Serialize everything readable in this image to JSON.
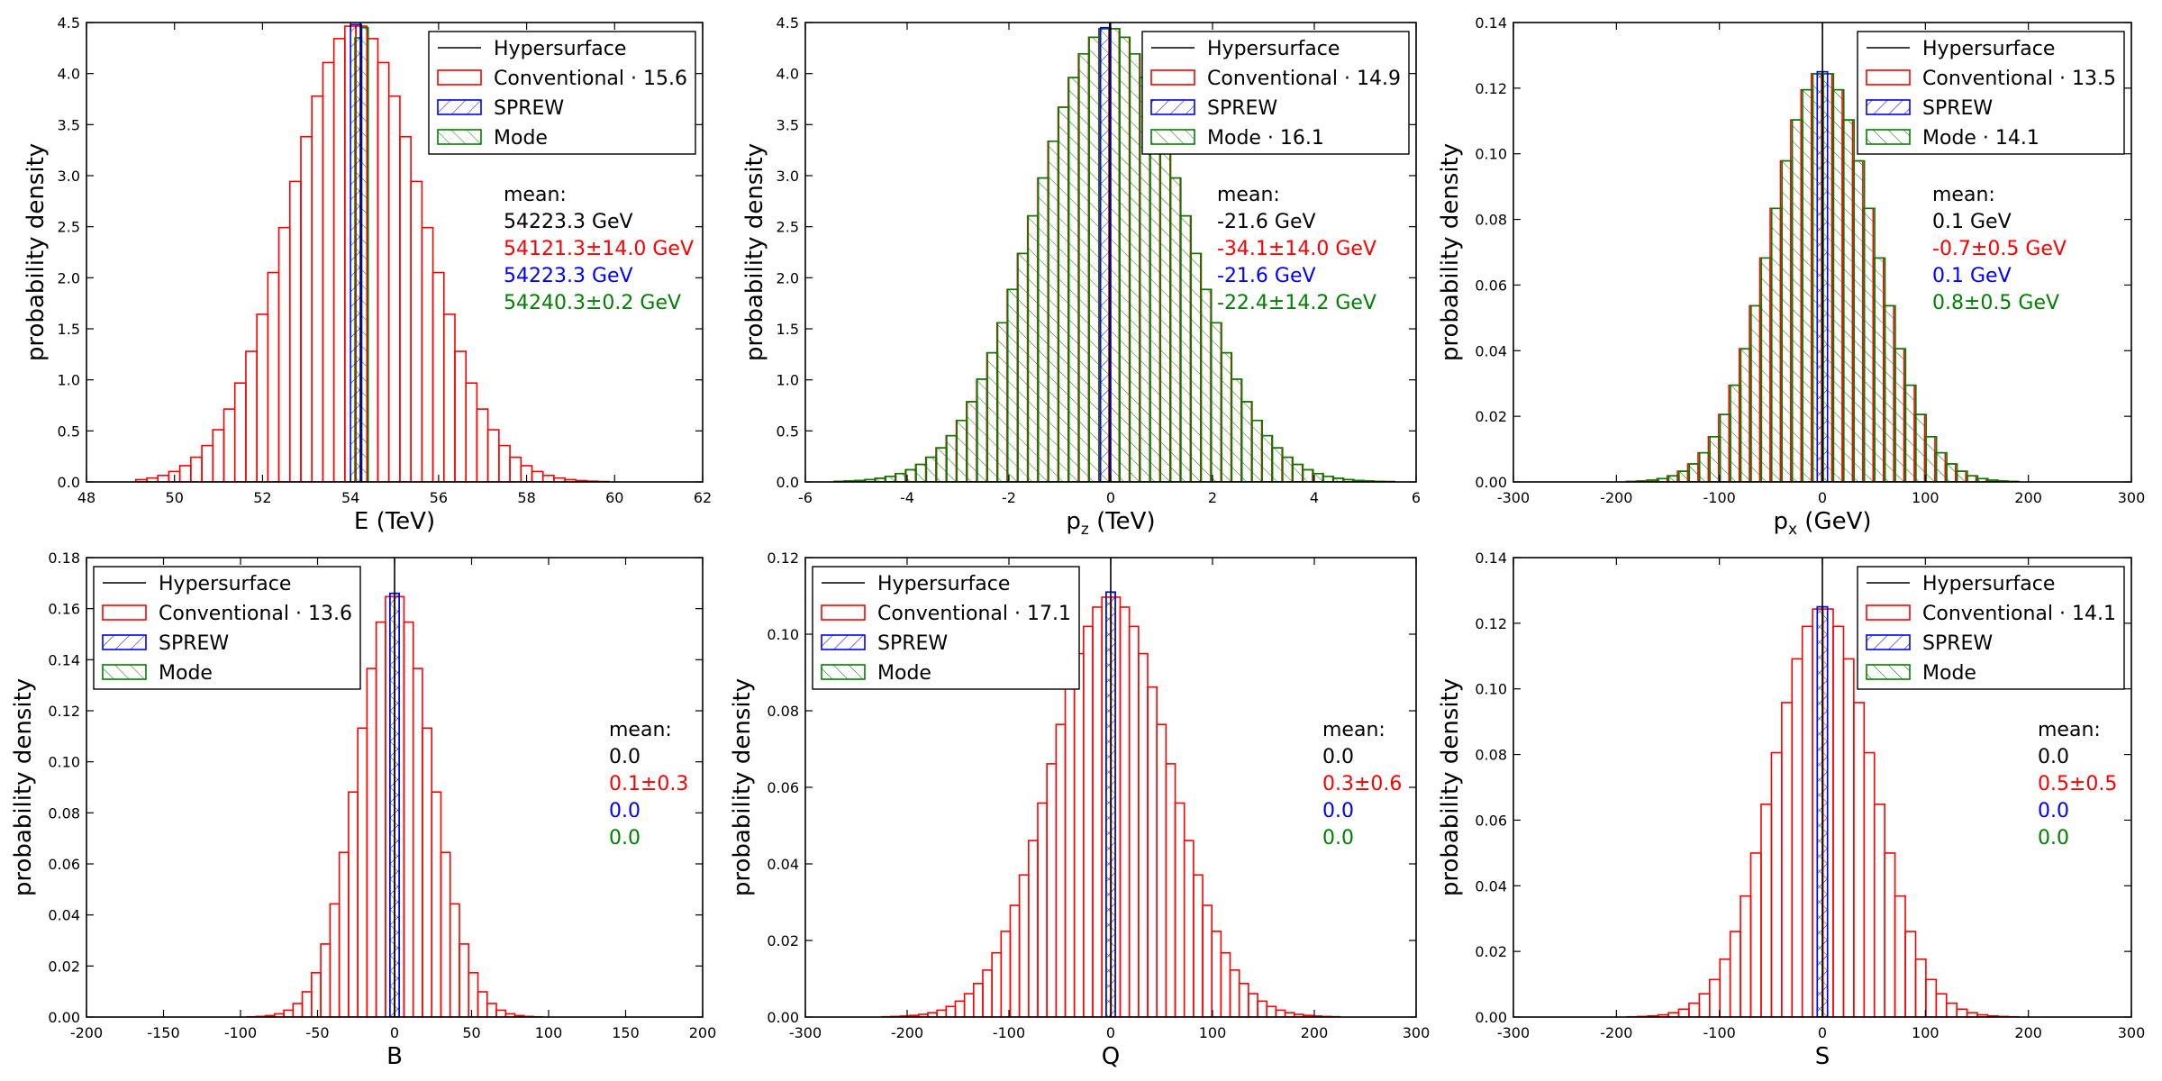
{
  "colors": {
    "hyper": "#000000",
    "conv": "#ff0000",
    "sprew": "#0000ff",
    "mode": "#008000"
  },
  "legend_labels": {
    "hyper": "Hypersurface",
    "conv": "Conventional",
    "sprew": "SPREW",
    "mode": "Mode",
    "sep": " · "
  },
  "ylabel": "probability density",
  "mean_label": "mean:",
  "chart_data": [
    {
      "type": "bar",
      "title": "",
      "xlabel": "E (TeV)",
      "ylabel": "probability density",
      "xlim": [
        48,
        62
      ],
      "ylim": [
        0,
        4.5
      ],
      "xticks": [
        48,
        50,
        52,
        54,
        56,
        58,
        60,
        62
      ],
      "yticks": [
        0.0,
        0.5,
        1.0,
        1.5,
        2.0,
        2.5,
        3.0,
        3.5,
        4.0,
        4.5
      ],
      "ytick_dec": 1,
      "hypersurface_x": 54.2233,
      "conventional": {
        "mean": 54.1213,
        "sigma": 1.5,
        "bin_width": 0.25,
        "peak": 4.48,
        "min": 49.2,
        "max": 60.5
      },
      "sprew": {
        "bin_edges": [
          54.0,
          54.25
        ],
        "value": 4.48
      },
      "mode": {
        "bin_edges": [
          54.1,
          54.25,
          54.4
        ],
        "values": [
          4.35,
          4.45
        ]
      },
      "legend": {
        "position": "upper-right",
        "conv_suffix": "15.6",
        "mode_suffix": ""
      },
      "mean_block": {
        "hyper": "54223.3 GeV",
        "conv": "54121.3±14.0 GeV",
        "sprew": "54223.3 GeV",
        "mode": "54240.3±0.2 GeV"
      }
    },
    {
      "type": "bar",
      "title": "",
      "xlabel": "p",
      "xlabel_sub": "z",
      "xlabel_unit": " (TeV)",
      "ylabel": "probability density",
      "xlim": [
        -6,
        6
      ],
      "ylim": [
        0,
        4.5
      ],
      "xticks": [
        -6,
        -4,
        -2,
        0,
        2,
        4,
        6
      ],
      "yticks": [
        0.0,
        0.5,
        1.0,
        1.5,
        2.0,
        2.5,
        3.0,
        3.5,
        4.0,
        4.5
      ],
      "ytick_dec": 1,
      "hypersurface_x": -0.0216,
      "conventional": {
        "mean": -0.0341,
        "sigma": 1.45,
        "bin_width": 0.2,
        "peak": 4.45,
        "min": -5.4,
        "max": 5.6
      },
      "sprew": {
        "bin_edges": [
          -0.2,
          0.0
        ],
        "value": 4.45
      },
      "mode": {
        "mean": -0.0224,
        "sigma": 1.45,
        "bin_width": 0.2,
        "peak": 4.45,
        "min": -5.4,
        "max": 5.6
      },
      "legend": {
        "position": "upper-right",
        "conv_suffix": "14.9",
        "mode_suffix": "16.1"
      },
      "mean_block": {
        "hyper": "-21.6 GeV",
        "conv": "-34.1±14.0 GeV",
        "sprew": "-21.6 GeV",
        "mode": "-22.4±14.2 GeV"
      }
    },
    {
      "type": "bar",
      "title": "",
      "xlabel": "p",
      "xlabel_sub": "x",
      "xlabel_unit": " (GeV)",
      "ylabel": "probability density",
      "xlim": [
        -300,
        300
      ],
      "ylim": [
        0,
        0.14
      ],
      "xticks": [
        -300,
        -200,
        -100,
        0,
        100,
        200,
        300
      ],
      "yticks": [
        0.0,
        0.02,
        0.04,
        0.06,
        0.08,
        0.1,
        0.12,
        0.14
      ],
      "ytick_dec": 2,
      "hypersurface_x": 0.1,
      "conventional": {
        "mean": -0.7,
        "sigma": 50,
        "bin_width": 10,
        "peak": 0.125,
        "min": -185,
        "max": 200
      },
      "sprew": {
        "bin_edges": [
          -5,
          5
        ],
        "value": 0.125
      },
      "mode": {
        "mean": 0.8,
        "sigma": 50,
        "bin_width": 10,
        "peak": 0.125,
        "min": -185,
        "max": 200
      },
      "legend": {
        "position": "upper-right",
        "conv_suffix": "13.5",
        "mode_suffix": "14.1"
      },
      "mean_block": {
        "hyper": "0.1 GeV",
        "conv": "-0.7±0.5 GeV",
        "sprew": "0.1 GeV",
        "mode": "0.8±0.5 GeV"
      }
    },
    {
      "type": "bar",
      "title": "",
      "xlabel": "B",
      "ylabel": "probability density",
      "xlim": [
        -200,
        200
      ],
      "ylim": [
        0,
        0.18
      ],
      "xticks": [
        -200,
        -150,
        -100,
        -50,
        0,
        50,
        100,
        150,
        200
      ],
      "yticks": [
        0.0,
        0.02,
        0.04,
        0.06,
        0.08,
        0.1,
        0.12,
        0.14,
        0.16,
        0.18
      ],
      "ytick_dec": 2,
      "hypersurface_x": 0.0,
      "conventional": {
        "mean": 0.1,
        "sigma": 24,
        "bin_width": 6,
        "peak": 0.166,
        "min": -130,
        "max": 160
      },
      "sprew": {
        "bin_edges": [
          -3,
          3
        ],
        "value": 0.166
      },
      "mode": {
        "bin_edges": [
          -3,
          3
        ],
        "values": [
          0.166
        ]
      },
      "legend": {
        "position": "upper-left",
        "conv_suffix": "13.6",
        "mode_suffix": ""
      },
      "mean_block": {
        "hyper": "0.0",
        "conv": "0.1±0.3",
        "sprew": "0.0",
        "mode": "0.0"
      }
    },
    {
      "type": "bar",
      "title": "",
      "xlabel": "Q",
      "ylabel": "probability density",
      "xlim": [
        -300,
        300
      ],
      "ylim": [
        0,
        0.12
      ],
      "xticks": [
        -300,
        -200,
        -100,
        0,
        100,
        200,
        300
      ],
      "yticks": [
        0.0,
        0.02,
        0.04,
        0.06,
        0.08,
        0.1,
        0.12
      ],
      "ytick_dec": 2,
      "hypersurface_x": 0.0,
      "conventional": {
        "mean": 0.3,
        "sigma": 58,
        "bin_width": 9,
        "peak": 0.11,
        "min": -240,
        "max": 230
      },
      "sprew": {
        "bin_edges": [
          -4.5,
          4.5
        ],
        "value": 0.111
      },
      "mode": {
        "bin_edges": [
          -4.5,
          4.5
        ],
        "values": [
          0.111
        ]
      },
      "legend": {
        "position": "upper-left",
        "conv_suffix": "17.1",
        "mode_suffix": ""
      },
      "mean_block": {
        "hyper": "0.0",
        "conv": "0.3±0.6",
        "sprew": "0.0",
        "mode": "0.0"
      }
    },
    {
      "type": "bar",
      "title": "",
      "xlabel": "S",
      "ylabel": "probability density",
      "xlim": [
        -300,
        300
      ],
      "ylim": [
        0,
        0.14
      ],
      "xticks": [
        -300,
        -200,
        -100,
        0,
        100,
        200,
        300
      ],
      "yticks": [
        0.0,
        0.02,
        0.04,
        0.06,
        0.08,
        0.1,
        0.12,
        0.14
      ],
      "ytick_dec": 2,
      "hypersurface_x": 0.0,
      "conventional": {
        "mean": 0.5,
        "sigma": 48,
        "bin_width": 10,
        "peak": 0.125,
        "min": -185,
        "max": 195
      },
      "sprew": {
        "bin_edges": [
          -5,
          5
        ],
        "value": 0.125
      },
      "mode": {
        "bin_edges": [
          -5,
          5
        ],
        "values": [
          0.125
        ]
      },
      "legend": {
        "position": "upper-right",
        "conv_suffix": "14.1",
        "mode_suffix": ""
      },
      "mean_block": {
        "hyper": "0.0",
        "conv": "0.5±0.5",
        "sprew": "0.0",
        "mode": "0.0"
      }
    }
  ]
}
